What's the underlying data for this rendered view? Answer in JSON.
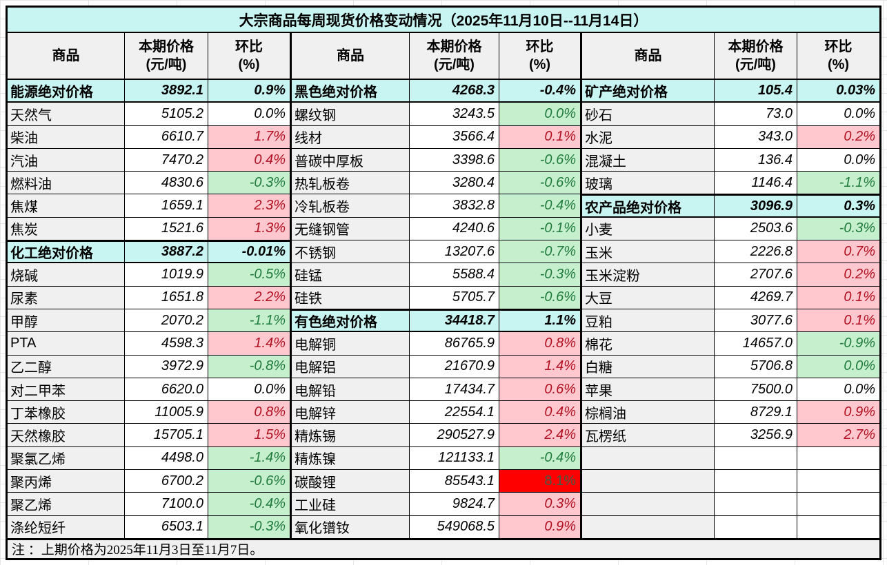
{
  "title": "大宗商品每周现货价格变动情况（2025年11月10日--11月14日）",
  "note": "注 ：上期价格为2025年11月3日至11月7日。",
  "header": {
    "commodity": "商品",
    "price_line1": "本期价格",
    "price_line2": "(元/吨)",
    "change_line1": "环比",
    "change_line2": "(%)"
  },
  "colors": {
    "section_bg": "#c8f5f2",
    "name_bg": "#f0f0f0",
    "header_bg": "#f0f0f0",
    "up_bg": "#ffc7ce",
    "up_text": "#b01020",
    "down_bg": "#c6efce",
    "down_text": "#1f7a3c",
    "alert_bg": "#ff0000",
    "alert_text": "#3f5e46",
    "border": "#000000"
  },
  "groups": [
    {
      "rows": [
        {
          "name": "能源绝对价格",
          "price": "3892.1",
          "change": "0.9%",
          "trend": "section"
        },
        {
          "name": "天然气",
          "price": "5105.2",
          "change": "0.0%",
          "trend": "flat"
        },
        {
          "name": "柴油",
          "price": "6610.7",
          "change": "1.7%",
          "trend": "up"
        },
        {
          "name": "汽油",
          "price": "7470.2",
          "change": "0.4%",
          "trend": "up"
        },
        {
          "name": "燃料油",
          "price": "4830.6",
          "change": "-0.3%",
          "trend": "down"
        },
        {
          "name": "焦煤",
          "price": "1659.1",
          "change": "2.3%",
          "trend": "up"
        },
        {
          "name": "焦炭",
          "price": "1521.6",
          "change": "1.3%",
          "trend": "up"
        },
        {
          "name": "化工绝对价格",
          "price": "3887.2",
          "change": "-0.01%",
          "trend": "section"
        },
        {
          "name": "烧碱",
          "price": "1019.9",
          "change": "-0.5%",
          "trend": "down"
        },
        {
          "name": "尿素",
          "price": "1651.8",
          "change": "2.2%",
          "trend": "up"
        },
        {
          "name": "甲醇",
          "price": "2070.2",
          "change": "-1.1%",
          "trend": "down"
        },
        {
          "name": "PTA",
          "price": "4598.3",
          "change": "1.4%",
          "trend": "up"
        },
        {
          "name": "乙二醇",
          "price": "3972.9",
          "change": "-0.8%",
          "trend": "down"
        },
        {
          "name": "对二甲苯",
          "price": "6620.0",
          "change": "0.0%",
          "trend": "flat"
        },
        {
          "name": "丁苯橡胶",
          "price": "11005.9",
          "change": "0.8%",
          "trend": "up"
        },
        {
          "name": "天然橡胶",
          "price": "15705.1",
          "change": "1.5%",
          "trend": "up"
        },
        {
          "name": "聚氯乙烯",
          "price": "4498.0",
          "change": "-1.4%",
          "trend": "down"
        },
        {
          "name": "聚丙烯",
          "price": "6700.2",
          "change": "-0.6%",
          "trend": "down"
        },
        {
          "name": "聚乙烯",
          "price": "7100.0",
          "change": "-0.4%",
          "trend": "down"
        },
        {
          "name": "涤纶短纤",
          "price": "6503.1",
          "change": "-0.3%",
          "trend": "down"
        }
      ]
    },
    {
      "rows": [
        {
          "name": "黑色绝对价格",
          "price": "4268.3",
          "change": "-0.4%",
          "trend": "section"
        },
        {
          "name": "螺纹钢",
          "price": "3243.5",
          "change": "0.0%",
          "trend": "down"
        },
        {
          "name": "线材",
          "price": "3566.4",
          "change": "0.1%",
          "trend": "up"
        },
        {
          "name": "普碳中厚板",
          "price": "3398.6",
          "change": "-0.6%",
          "trend": "down"
        },
        {
          "name": "热轧板卷",
          "price": "3280.4",
          "change": "-0.6%",
          "trend": "down"
        },
        {
          "name": "冷轧板卷",
          "price": "3832.8",
          "change": "-0.4%",
          "trend": "down"
        },
        {
          "name": "无缝钢管",
          "price": "4240.6",
          "change": "-0.1%",
          "trend": "down"
        },
        {
          "name": "不锈钢",
          "price": "13207.6",
          "change": "-0.7%",
          "trend": "down"
        },
        {
          "name": "硅锰",
          "price": "5588.4",
          "change": "-0.3%",
          "trend": "down"
        },
        {
          "name": "硅铁",
          "price": "5705.7",
          "change": "-0.6%",
          "trend": "down"
        },
        {
          "name": "有色绝对价格",
          "price": "34418.7",
          "change": "1.1%",
          "trend": "section"
        },
        {
          "name": "电解铜",
          "price": "86765.9",
          "change": "0.8%",
          "trend": "up"
        },
        {
          "name": "电解铝",
          "price": "21670.9",
          "change": "1.4%",
          "trend": "up"
        },
        {
          "name": "电解铅",
          "price": "17434.7",
          "change": "0.6%",
          "trend": "up"
        },
        {
          "name": "电解锌",
          "price": "22554.1",
          "change": "0.4%",
          "trend": "up"
        },
        {
          "name": "精炼锡",
          "price": "290527.9",
          "change": "2.4%",
          "trend": "up"
        },
        {
          "name": "精炼镍",
          "price": "121133.1",
          "change": "-0.4%",
          "trend": "down"
        },
        {
          "name": "碳酸锂",
          "price": "85543.1",
          "change": "8.1%",
          "trend": "alert"
        },
        {
          "name": "工业硅",
          "price": "9824.7",
          "change": "0.3%",
          "trend": "up"
        },
        {
          "name": "氧化镨钕",
          "price": "549068.5",
          "change": "0.9%",
          "trend": "up"
        }
      ]
    },
    {
      "rows": [
        {
          "name": "矿产绝对价格",
          "price": "105.4",
          "change": "0.03%",
          "trend": "section"
        },
        {
          "name": "砂石",
          "price": "73.0",
          "change": "0.0%",
          "trend": "flat"
        },
        {
          "name": "水泥",
          "price": "343.0",
          "change": "0.2%",
          "trend": "up"
        },
        {
          "name": "混凝土",
          "price": "136.4",
          "change": "0.0%",
          "trend": "flat"
        },
        {
          "name": "玻璃",
          "price": "1146.4",
          "change": "-1.1%",
          "trend": "down"
        },
        {
          "name": "农产品绝对价格",
          "price": "3096.9",
          "change": "0.3%",
          "trend": "section"
        },
        {
          "name": "小麦",
          "price": "2503.6",
          "change": "-0.3%",
          "trend": "down"
        },
        {
          "name": "玉米",
          "price": "2226.8",
          "change": "0.7%",
          "trend": "up"
        },
        {
          "name": "玉米淀粉",
          "price": "2707.6",
          "change": "0.2%",
          "trend": "up"
        },
        {
          "name": "大豆",
          "price": "4269.7",
          "change": "0.1%",
          "trend": "up"
        },
        {
          "name": "豆粕",
          "price": "3077.6",
          "change": "0.1%",
          "trend": "up"
        },
        {
          "name": "棉花",
          "price": "14657.0",
          "change": "-0.9%",
          "trend": "down"
        },
        {
          "name": "白糖",
          "price": "5706.8",
          "change": "0.0%",
          "trend": "down"
        },
        {
          "name": "苹果",
          "price": "7500.0",
          "change": "0.0%",
          "trend": "flat"
        },
        {
          "name": "棕榈油",
          "price": "8729.1",
          "change": "0.9%",
          "trend": "up"
        },
        {
          "name": "瓦楞纸",
          "price": "3256.9",
          "change": "2.7%",
          "trend": "up"
        },
        {
          "name": "",
          "price": "",
          "change": "",
          "trend": "empty"
        },
        {
          "name": "",
          "price": "",
          "change": "",
          "trend": "empty"
        },
        {
          "name": "",
          "price": "",
          "change": "",
          "trend": "empty"
        },
        {
          "name": "",
          "price": "",
          "change": "",
          "trend": "empty"
        }
      ]
    }
  ]
}
